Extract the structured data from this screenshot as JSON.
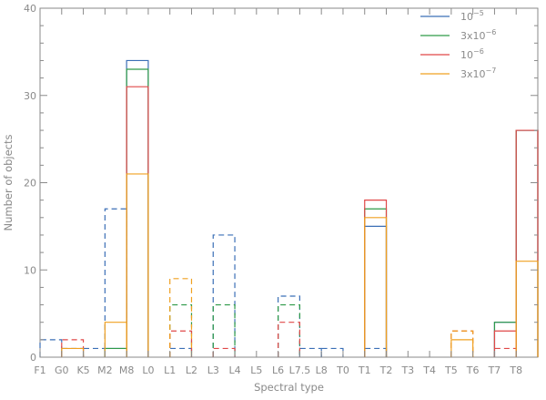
{
  "chart_data": {
    "type": "bar",
    "xlabel": "Spectral type",
    "ylabel": "Number of objects",
    "ylim": [
      0,
      40
    ],
    "yticks": [
      0,
      10,
      20,
      30,
      40
    ],
    "y_minor_step": 2,
    "categories": [
      "F1",
      "G0",
      "K5",
      "M2",
      "M8",
      "L0",
      "L1",
      "L2",
      "L3",
      "L4",
      "L5",
      "L6",
      "L7.5",
      "L8",
      "T0",
      "T1",
      "T2",
      "T3",
      "T4",
      "T5",
      "T6",
      "T7",
      "T8"
    ],
    "legend_position": "top-right",
    "series": [
      {
        "name_base": "10",
        "name_exp": "−5",
        "color": "#3b6fb6",
        "solid": [
          0,
          0,
          0,
          1,
          34,
          0,
          0,
          0,
          0,
          0,
          0,
          0,
          0,
          0,
          0,
          15,
          0,
          0,
          0,
          0,
          0,
          4,
          26
        ],
        "dashed": [
          2,
          1,
          1,
          17,
          0,
          0,
          1,
          0,
          14,
          0,
          0,
          7,
          1,
          1,
          0,
          1,
          0,
          0,
          0,
          0,
          0,
          0,
          0
        ]
      },
      {
        "name_base": "3x10",
        "name_exp": "−6",
        "color": "#2e9a48",
        "solid": [
          0,
          0,
          0,
          1,
          33,
          0,
          0,
          0,
          0,
          0,
          0,
          0,
          0,
          0,
          0,
          17,
          0,
          0,
          0,
          0,
          0,
          4,
          26
        ],
        "dashed": [
          0,
          0,
          0,
          0,
          0,
          0,
          6,
          0,
          6,
          0,
          0,
          6,
          0,
          0,
          0,
          0,
          0,
          0,
          0,
          0,
          0,
          0,
          0
        ]
      },
      {
        "name_base": "10",
        "name_exp": "−6",
        "color": "#e04848",
        "solid": [
          0,
          0,
          0,
          0,
          31,
          0,
          0,
          0,
          0,
          0,
          0,
          0,
          0,
          0,
          0,
          18,
          0,
          0,
          0,
          0,
          0,
          3,
          26
        ],
        "dashed": [
          0,
          2,
          0,
          0,
          0,
          0,
          3,
          0,
          1,
          0,
          0,
          4,
          0,
          0,
          0,
          0,
          0,
          0,
          0,
          3,
          0,
          1,
          0
        ]
      },
      {
        "name_base": "3x10",
        "name_exp": "−7",
        "color": "#f0a020",
        "solid": [
          0,
          1,
          0,
          4,
          21,
          0,
          0,
          0,
          0,
          0,
          0,
          0,
          0,
          0,
          0,
          16,
          0,
          0,
          0,
          2,
          0,
          0,
          11
        ],
        "dashed": [
          0,
          0,
          0,
          0,
          0,
          0,
          9,
          0,
          0,
          0,
          0,
          0,
          0,
          0,
          0,
          0,
          0,
          0,
          0,
          3,
          0,
          0,
          0
        ]
      }
    ]
  }
}
